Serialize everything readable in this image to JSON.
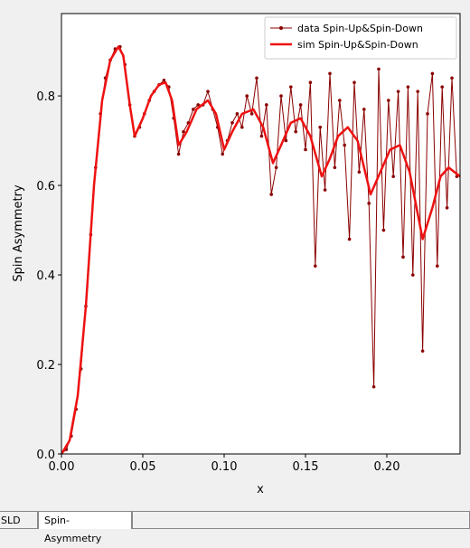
{
  "chart_data": {
    "type": "line",
    "xlabel": "x",
    "ylabel": "Spin Asymmetry",
    "xlim": [
      0,
      0.245
    ],
    "ylim": [
      0,
      0.984
    ],
    "xticks": [
      {
        "value": 0,
        "label": "0.00"
      },
      {
        "value": 0.05,
        "label": "0.05"
      },
      {
        "value": 0.1,
        "label": "0.10"
      },
      {
        "value": 0.15,
        "label": "0.15"
      },
      {
        "value": 0.2,
        "label": "0.20"
      }
    ],
    "yticks": [
      {
        "value": 0,
        "label": "0.0"
      },
      0.2,
      0.4,
      0.6,
      0.8
    ],
    "legend": "upper right",
    "series": [
      {
        "name": "data Spin-Up&Spin-Down",
        "color": "#8b0000",
        "linewidth": 1,
        "marker": true,
        "x": [
          0,
          0.003,
          0.006,
          0.009,
          0.012,
          0.015,
          0.018,
          0.021,
          0.024,
          0.027,
          0.03,
          0.033,
          0.036,
          0.039,
          0.042,
          0.045,
          0.048,
          0.051,
          0.054,
          0.057,
          0.06,
          0.063,
          0.066,
          0.069,
          0.072,
          0.075,
          0.078,
          0.081,
          0.084,
          0.087,
          0.09,
          0.093,
          0.096,
          0.099,
          0.102,
          0.105,
          0.108,
          0.111,
          0.114,
          0.117,
          0.12,
          0.123,
          0.126,
          0.129,
          0.132,
          0.135,
          0.138,
          0.141,
          0.144,
          0.147,
          0.15,
          0.153,
          0.156,
          0.159,
          0.162,
          0.165,
          0.168,
          0.171,
          0.174,
          0.177,
          0.18,
          0.183,
          0.186,
          0.189,
          0.192,
          0.195,
          0.198,
          0.201,
          0.204,
          0.207,
          0.21,
          0.213,
          0.216,
          0.219,
          0.222,
          0.225,
          0.228,
          0.231,
          0.234,
          0.237,
          0.24,
          0.243
        ],
        "values": [
          0,
          0.01,
          0.04,
          0.1,
          0.19,
          0.33,
          0.49,
          0.64,
          0.76,
          0.84,
          0.88,
          0.905,
          0.91,
          0.87,
          0.78,
          0.71,
          0.73,
          0.76,
          0.79,
          0.81,
          0.825,
          0.835,
          0.82,
          0.75,
          0.67,
          0.72,
          0.74,
          0.77,
          0.78,
          0.78,
          0.81,
          0.77,
          0.73,
          0.67,
          0.7,
          0.74,
          0.76,
          0.73,
          0.8,
          0.76,
          0.84,
          0.71,
          0.78,
          0.58,
          0.64,
          0.8,
          0.7,
          0.82,
          0.72,
          0.78,
          0.68,
          0.83,
          0.42,
          0.73,
          0.59,
          0.85,
          0.64,
          0.79,
          0.69,
          0.48,
          0.83,
          0.63,
          0.77,
          0.56,
          0.15,
          0.86,
          0.5,
          0.79,
          0.62,
          0.81,
          0.44,
          0.82,
          0.4,
          0.81,
          0.23,
          0.76,
          0.85,
          0.42,
          0.82,
          0.55,
          0.84,
          0.62
        ]
      },
      {
        "name": "sim Spin-Up&Spin-Down",
        "color": "#ee1111",
        "linewidth": 2.5,
        "marker": false,
        "x": [
          0,
          0.005,
          0.01,
          0.015,
          0.02,
          0.025,
          0.03,
          0.035,
          0.038,
          0.042,
          0.045,
          0.05,
          0.055,
          0.06,
          0.064,
          0.068,
          0.072,
          0.077,
          0.083,
          0.09,
          0.095,
          0.1,
          0.105,
          0.111,
          0.118,
          0.124,
          0.13,
          0.135,
          0.141,
          0.147,
          0.153,
          0.16,
          0.165,
          0.17,
          0.176,
          0.182,
          0.19,
          0.196,
          0.202,
          0.208,
          0.214,
          0.222,
          0.228,
          0.233,
          0.238,
          0.245
        ],
        "values": [
          0,
          0.03,
          0.13,
          0.33,
          0.6,
          0.79,
          0.88,
          0.91,
          0.89,
          0.78,
          0.71,
          0.75,
          0.8,
          0.825,
          0.83,
          0.79,
          0.69,
          0.72,
          0.77,
          0.79,
          0.76,
          0.68,
          0.72,
          0.76,
          0.77,
          0.73,
          0.65,
          0.69,
          0.74,
          0.75,
          0.71,
          0.62,
          0.66,
          0.71,
          0.73,
          0.7,
          0.58,
          0.63,
          0.68,
          0.69,
          0.63,
          0.48,
          0.55,
          0.62,
          0.64,
          0.62
        ]
      }
    ]
  },
  "tabs": [
    "SLD",
    "Spin-Asymmetry"
  ]
}
